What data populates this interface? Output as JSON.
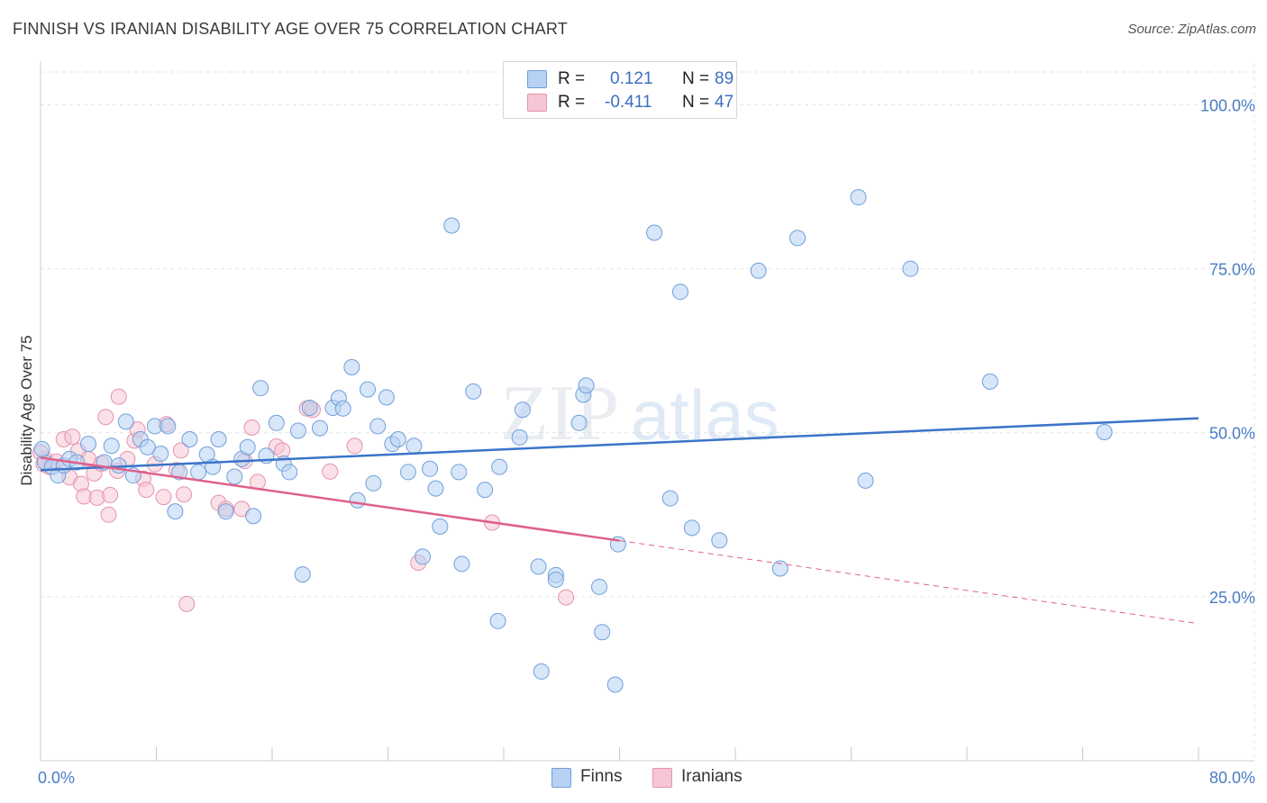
{
  "title": "FINNISH VS IRANIAN DISABILITY AGE OVER 75 CORRELATION CHART",
  "source": "Source: ZipAtlas.com",
  "watermark": {
    "zip": "ZIP",
    "atlas": "atlas"
  },
  "legend": {
    "items": [
      {
        "r_label": "R =",
        "r_value": "0.121",
        "n_label": "N =",
        "n_value": "89"
      },
      {
        "r_label": "R =",
        "r_value": "-0.411",
        "n_label": "N =",
        "n_value": "47"
      }
    ]
  },
  "bottom_legend": {
    "finns": "Finns",
    "iranians": "Iranians"
  },
  "colors": {
    "finns_fill": "#b7d1f3",
    "finns_stroke": "#6f9fdc",
    "finns_line": "#3a74c9",
    "iranians_fill": "#f6c6d4",
    "iranians_stroke": "#e592ad",
    "iranians_line": "#e0608a",
    "grid": "#e3e3e3",
    "tick_text": "#4a7cc4"
  },
  "chart_data": {
    "type": "scatter",
    "title": "FINNISH VS IRANIAN DISABILITY AGE OVER 75 CORRELATION CHART",
    "xlabel": "",
    "ylabel": "Disability Age Over 75",
    "xlim": [
      0,
      80
    ],
    "ylim": [
      0,
      105
    ],
    "x_tick_labels": [
      "0.0%",
      "80.0%"
    ],
    "y_ticks": [
      25,
      50,
      75,
      100
    ],
    "y_tick_labels": [
      "25.0%",
      "50.0%",
      "75.0%",
      "100.0%"
    ],
    "grid": true,
    "legend_position": "top-center",
    "series": [
      {
        "name": "Finns",
        "r": 0.121,
        "n": 89,
        "trend": {
          "x": [
            0,
            80
          ],
          "y": [
            44.3,
            52.2
          ],
          "dashed_from_x": null
        },
        "points": [
          [
            0.3,
            45.5
          ],
          [
            0.8,
            44.8
          ],
          [
            1.2,
            43.5
          ],
          [
            1.6,
            45.0
          ],
          [
            2.0,
            46.0
          ],
          [
            2.5,
            45.5
          ],
          [
            3.3,
            48.3
          ],
          [
            4.4,
            45.5
          ],
          [
            4.9,
            48.0
          ],
          [
            5.4,
            45.0
          ],
          [
            5.9,
            51.7
          ],
          [
            6.4,
            43.5
          ],
          [
            6.9,
            49.0
          ],
          [
            7.4,
            47.8
          ],
          [
            7.9,
            51.0
          ],
          [
            8.3,
            46.8
          ],
          [
            8.8,
            51.0
          ],
          [
            9.3,
            38.0
          ],
          [
            9.6,
            44.0
          ],
          [
            10.3,
            49.0
          ],
          [
            10.9,
            44.0
          ],
          [
            11.5,
            46.7
          ],
          [
            11.9,
            44.8
          ],
          [
            12.3,
            49.0
          ],
          [
            12.8,
            38.0
          ],
          [
            13.4,
            43.3
          ],
          [
            13.9,
            46.0
          ],
          [
            14.3,
            47.8
          ],
          [
            14.7,
            37.3
          ],
          [
            15.2,
            56.8
          ],
          [
            15.6,
            46.5
          ],
          [
            16.3,
            51.5
          ],
          [
            16.8,
            45.3
          ],
          [
            17.2,
            44.0
          ],
          [
            17.8,
            50.3
          ],
          [
            18.1,
            28.4
          ],
          [
            18.6,
            53.8
          ],
          [
            19.3,
            50.7
          ],
          [
            20.2,
            53.8
          ],
          [
            20.6,
            55.3
          ],
          [
            20.9,
            53.7
          ],
          [
            21.5,
            60.0
          ],
          [
            21.9,
            39.7
          ],
          [
            22.6,
            56.6
          ],
          [
            23.0,
            42.3
          ],
          [
            23.3,
            51.0
          ],
          [
            23.9,
            55.4
          ],
          [
            24.3,
            48.3
          ],
          [
            24.7,
            49.0
          ],
          [
            25.4,
            44.0
          ],
          [
            25.8,
            48.0
          ],
          [
            26.4,
            31.1
          ],
          [
            26.9,
            44.5
          ],
          [
            27.3,
            41.5
          ],
          [
            27.6,
            35.7
          ],
          [
            28.4,
            81.6
          ],
          [
            28.9,
            44.0
          ],
          [
            29.1,
            30.0
          ],
          [
            29.9,
            56.3
          ],
          [
            30.7,
            41.3
          ],
          [
            31.6,
            21.3
          ],
          [
            31.7,
            44.8
          ],
          [
            33.1,
            49.3
          ],
          [
            33.3,
            53.5
          ],
          [
            34.4,
            29.6
          ],
          [
            34.6,
            13.6
          ],
          [
            35.6,
            28.3
          ],
          [
            35.6,
            27.6
          ],
          [
            37.2,
            51.5
          ],
          [
            37.5,
            55.8
          ],
          [
            37.7,
            57.2
          ],
          [
            38.6,
            26.5
          ],
          [
            38.8,
            19.6
          ],
          [
            39.7,
            11.6
          ],
          [
            39.9,
            33.0
          ],
          [
            42.4,
            80.5
          ],
          [
            43.5,
            40.0
          ],
          [
            44.2,
            71.5
          ],
          [
            45.0,
            35.5
          ],
          [
            46.9,
            33.6
          ],
          [
            49.6,
            74.7
          ],
          [
            51.1,
            29.3
          ],
          [
            52.3,
            79.7
          ],
          [
            56.5,
            85.9
          ],
          [
            57.0,
            42.7
          ],
          [
            60.1,
            75.0
          ],
          [
            65.6,
            57.8
          ],
          [
            73.5,
            50.1
          ],
          [
            0.1,
            47.5
          ]
        ]
      },
      {
        "name": "Iranians",
        "r": -0.411,
        "n": 47,
        "trend": {
          "x": [
            0,
            80
          ],
          "y": [
            46.2,
            20.9
          ],
          "dashed_from_x": 40
        },
        "points": [
          [
            0.3,
            46.0
          ],
          [
            0.6,
            44.8
          ],
          [
            1.1,
            45.6
          ],
          [
            1.6,
            49.0
          ],
          [
            2.0,
            43.2
          ],
          [
            2.2,
            49.4
          ],
          [
            2.6,
            47.2
          ],
          [
            2.8,
            42.2
          ],
          [
            3.0,
            40.3
          ],
          [
            3.3,
            46.0
          ],
          [
            3.7,
            43.8
          ],
          [
            3.9,
            40.1
          ],
          [
            4.2,
            45.3
          ],
          [
            4.5,
            52.4
          ],
          [
            4.7,
            37.5
          ],
          [
            4.8,
            40.5
          ],
          [
            5.3,
            44.2
          ],
          [
            5.4,
            55.5
          ],
          [
            6.0,
            46.0
          ],
          [
            6.5,
            48.8
          ],
          [
            6.7,
            50.5
          ],
          [
            7.1,
            43.0
          ],
          [
            7.3,
            41.3
          ],
          [
            7.9,
            45.2
          ],
          [
            8.5,
            40.2
          ],
          [
            8.7,
            51.3
          ],
          [
            9.4,
            44.3
          ],
          [
            9.7,
            47.3
          ],
          [
            9.9,
            40.6
          ],
          [
            10.1,
            23.9
          ],
          [
            12.3,
            39.3
          ],
          [
            12.8,
            38.4
          ],
          [
            13.9,
            38.4
          ],
          [
            14.1,
            45.7
          ],
          [
            14.6,
            50.8
          ],
          [
            15.0,
            42.5
          ],
          [
            16.3,
            47.9
          ],
          [
            16.7,
            47.3
          ],
          [
            18.4,
            53.7
          ],
          [
            18.8,
            53.5
          ],
          [
            20.0,
            44.1
          ],
          [
            21.7,
            48.0
          ],
          [
            26.1,
            30.2
          ],
          [
            31.2,
            36.3
          ],
          [
            36.3,
            24.9
          ],
          [
            0.0,
            47.0
          ],
          [
            0.2,
            45.2
          ]
        ]
      }
    ]
  }
}
